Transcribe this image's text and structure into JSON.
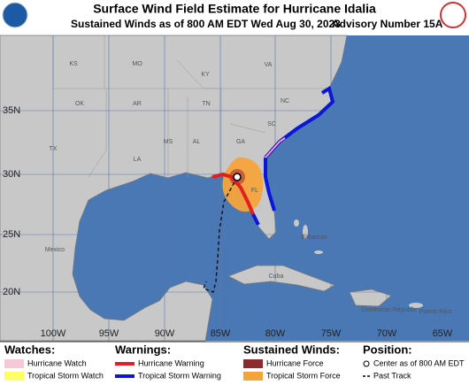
{
  "header": {
    "title": "Surface Wind Field Estimate for Hurricane Idalia",
    "subtitle": "Sustained Winds as of 800 AM EDT Wed Aug 30, 2023",
    "advisory": "Advisory Number 15A"
  },
  "map": {
    "latitude_labels": [
      "35N",
      "30N",
      "25N",
      "20N"
    ],
    "longitude_labels": [
      "100W",
      "95W",
      "90W",
      "85W",
      "80W",
      "75W",
      "70W",
      "65W"
    ],
    "place_labels": [
      "KS",
      "MO",
      "KY",
      "VA",
      "OK",
      "AR",
      "TN",
      "NC",
      "SC",
      "TX",
      "MS",
      "AL",
      "GA",
      "LA",
      "FL",
      "Mexico",
      "Bahamas",
      "Cuba",
      "Dominican Republic",
      "Puerto Rico"
    ]
  },
  "legend": [
    {
      "heading": "Watches:",
      "items": [
        "Hurricane Watch",
        "Tropical Storm Watch"
      ]
    },
    {
      "heading": "Warnings:",
      "items": [
        "Hurricane Warning",
        "Tropical Storm Warning"
      ]
    },
    {
      "heading": "Sustained Winds:",
      "items": [
        "Hurricane Force",
        "Tropical Storm Force"
      ]
    },
    {
      "heading": "Position:",
      "items": [
        "Center as of 800 AM EDT",
        "Past Track"
      ]
    }
  ]
}
